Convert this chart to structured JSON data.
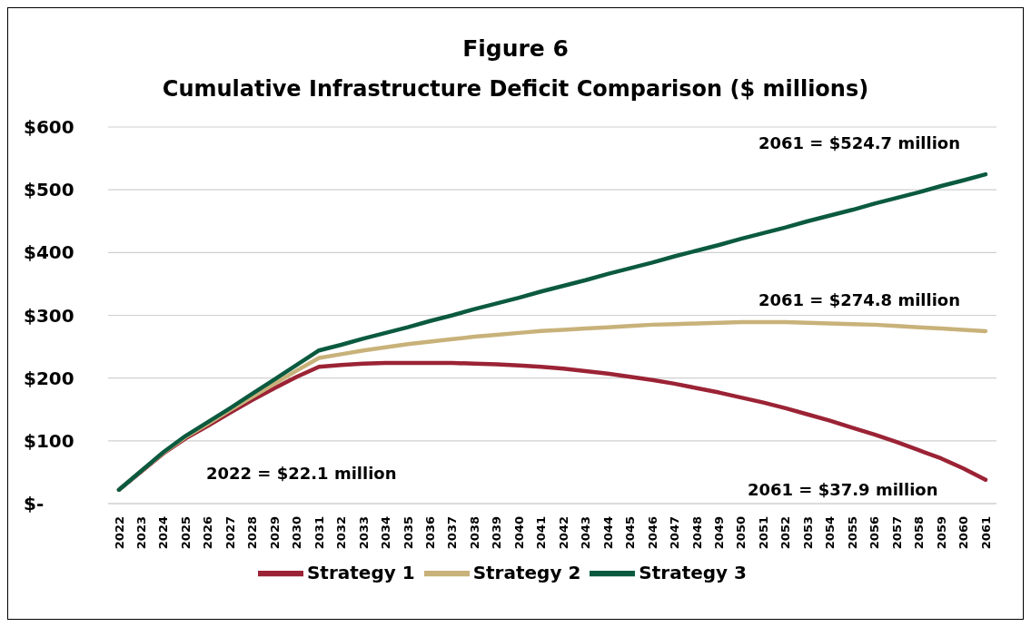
{
  "chart_data": {
    "type": "line",
    "title": "Figure 6",
    "subtitle": "Cumulative Infrastructure Deficit Comparison ($ millions)",
    "categories": [
      "2022",
      "2023",
      "2024",
      "2025",
      "2026",
      "2027",
      "2028",
      "2029",
      "2030",
      "2031",
      "2032",
      "2033",
      "2034",
      "2035",
      "2036",
      "2037",
      "2038",
      "2039",
      "2040",
      "2041",
      "2042",
      "2043",
      "2044",
      "2045",
      "2046",
      "2047",
      "2048",
      "2049",
      "2050",
      "2051",
      "2052",
      "2053",
      "2054",
      "2055",
      "2056",
      "2057",
      "2058",
      "2059",
      "2060",
      "2061"
    ],
    "series": [
      {
        "name": "Strategy 1",
        "color": "#9b2335",
        "values": [
          22.1,
          51,
          80,
          104,
          124,
          145,
          165,
          184,
          202,
          218,
          221,
          223,
          224,
          224,
          224,
          224,
          223,
          222,
          220,
          218,
          215,
          211,
          207,
          202,
          197,
          191,
          184,
          177,
          169,
          161,
          152,
          142,
          132,
          121,
          110,
          98,
          85,
          72,
          56,
          37.9
        ]
      },
      {
        "name": "Strategy 2",
        "color": "#c8b27a",
        "values": [
          22.1,
          52,
          81,
          106,
          127,
          149,
          170,
          191,
          212,
          232,
          238,
          244,
          249,
          254,
          258,
          262,
          266,
          269,
          272,
          275,
          277,
          279,
          281,
          283,
          285,
          286,
          287,
          288,
          289,
          289,
          289,
          288,
          287,
          286,
          285,
          283,
          281,
          279,
          277,
          274.8
        ]
      },
      {
        "name": "Strategy 3",
        "color": "#0b5a40",
        "values": [
          22.1,
          52,
          82,
          108,
          130,
          152,
          175,
          198,
          221,
          244,
          253,
          263,
          272,
          281,
          291,
          300,
          310,
          319,
          328,
          338,
          347,
          356,
          366,
          375,
          384,
          394,
          403,
          412,
          422,
          431,
          440,
          450,
          459,
          468,
          478,
          487,
          496,
          506,
          515,
          524.7
        ]
      }
    ],
    "ylim": [
      0,
      600
    ],
    "yticks": [
      {
        "value": 0,
        "label": "$-"
      },
      {
        "value": 100,
        "label": "$100"
      },
      {
        "value": 200,
        "label": "$200"
      },
      {
        "value": 300,
        "label": "$300"
      },
      {
        "value": 400,
        "label": "$400"
      },
      {
        "value": 500,
        "label": "$500"
      },
      {
        "value": 600,
        "label": "$600"
      }
    ],
    "grid": "y",
    "legend": "bottom",
    "marker": "none",
    "line_style": "solid",
    "annotations": [
      {
        "text": "2061 = $524.7 million",
        "x": "2061",
        "y": 524.7
      },
      {
        "text": "2061 = $274.8 million",
        "x": "2061",
        "y": 274.8
      },
      "2061 = $37.9 million",
      "2022 = $22.1 million"
    ]
  }
}
